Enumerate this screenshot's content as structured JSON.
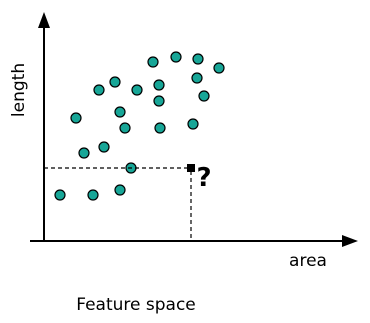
{
  "axes": {
    "y_label": "length",
    "x_label": "area"
  },
  "query_mark": "?",
  "caption": "Feature space"
}
